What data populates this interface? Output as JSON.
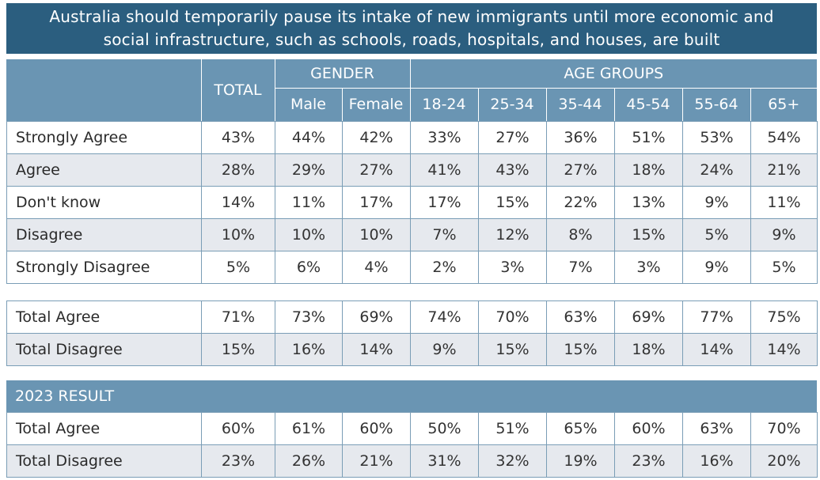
{
  "title": {
    "line1": "Australia should temporarily pause its intake of new immigrants until more economic and",
    "line2": "social infrastructure, such as schools, roads, hospitals, and houses, are built"
  },
  "header": {
    "total": "TOTAL",
    "gender": "GENDER",
    "age_groups": "AGE GROUPS",
    "columns": [
      "Male",
      "Female",
      "18-24",
      "25-34",
      "35-44",
      "45-54",
      "55-64",
      "65+"
    ]
  },
  "chart_data": {
    "type": "table",
    "columns": [
      "TOTAL",
      "Male",
      "Female",
      "18-24",
      "25-34",
      "35-44",
      "45-54",
      "55-64",
      "65+"
    ],
    "rows": [
      {
        "label": "Strongly Agree",
        "values": [
          "43%",
          "44%",
          "42%",
          "33%",
          "27%",
          "36%",
          "51%",
          "53%",
          "54%"
        ]
      },
      {
        "label": "Agree",
        "values": [
          "28%",
          "29%",
          "27%",
          "41%",
          "43%",
          "27%",
          "18%",
          "24%",
          "21%"
        ]
      },
      {
        "label": "Don't know",
        "values": [
          "14%",
          "11%",
          "17%",
          "17%",
          "15%",
          "22%",
          "13%",
          "9%",
          "11%"
        ]
      },
      {
        "label": "Disagree",
        "values": [
          "10%",
          "10%",
          "10%",
          "7%",
          "12%",
          "8%",
          "15%",
          "5%",
          "9%"
        ]
      },
      {
        "label": "Strongly Disagree",
        "values": [
          "5%",
          "6%",
          "4%",
          "2%",
          "3%",
          "7%",
          "3%",
          "9%",
          "5%"
        ]
      }
    ],
    "totals": [
      {
        "label": "Total Agree",
        "values": [
          "71%",
          "73%",
          "69%",
          "74%",
          "70%",
          "63%",
          "69%",
          "77%",
          "75%"
        ]
      },
      {
        "label": "Total Disagree",
        "values": [
          "15%",
          "16%",
          "14%",
          "9%",
          "15%",
          "15%",
          "18%",
          "14%",
          "14%"
        ]
      }
    ],
    "result_2023_label": "2023 RESULT",
    "result_2023": [
      {
        "label": "Total Agree",
        "values": [
          "60%",
          "61%",
          "60%",
          "50%",
          "51%",
          "65%",
          "60%",
          "63%",
          "70%"
        ]
      },
      {
        "label": "Total Disagree",
        "values": [
          "23%",
          "26%",
          "21%",
          "31%",
          "32%",
          "19%",
          "23%",
          "16%",
          "20%"
        ]
      }
    ]
  },
  "colors": {
    "title_bg": "#2b5e7f",
    "header_bg": "#6a95b3",
    "alt_row": "#e6e9ee",
    "border": "#7a9db6"
  }
}
